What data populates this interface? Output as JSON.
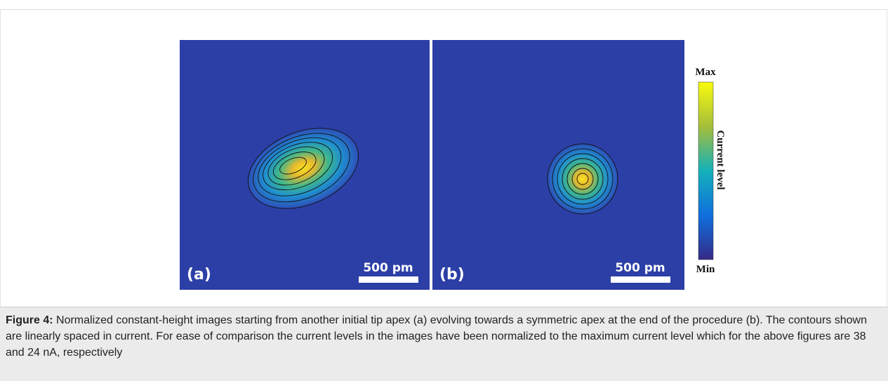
{
  "figure": {
    "panels": [
      {
        "label": "(a)",
        "scale_bar": "500 pm"
      },
      {
        "label": "(b)",
        "scale_bar": "500 pm"
      }
    ],
    "colorbar": {
      "max_label": "Max",
      "min_label": "Min",
      "title": "Current level"
    },
    "caption": {
      "label": "Figure 4:",
      "text": "Normalized constant-height images starting from another initial tip apex (a) evolving towards a symmetric apex at the end of the procedure (b). The contours shown are linearly spaced in current. For ease of comparison the current levels in the images have been normalized to the maximum current level which for the above figures are 38 and 24 nA, respectively"
    }
  }
}
